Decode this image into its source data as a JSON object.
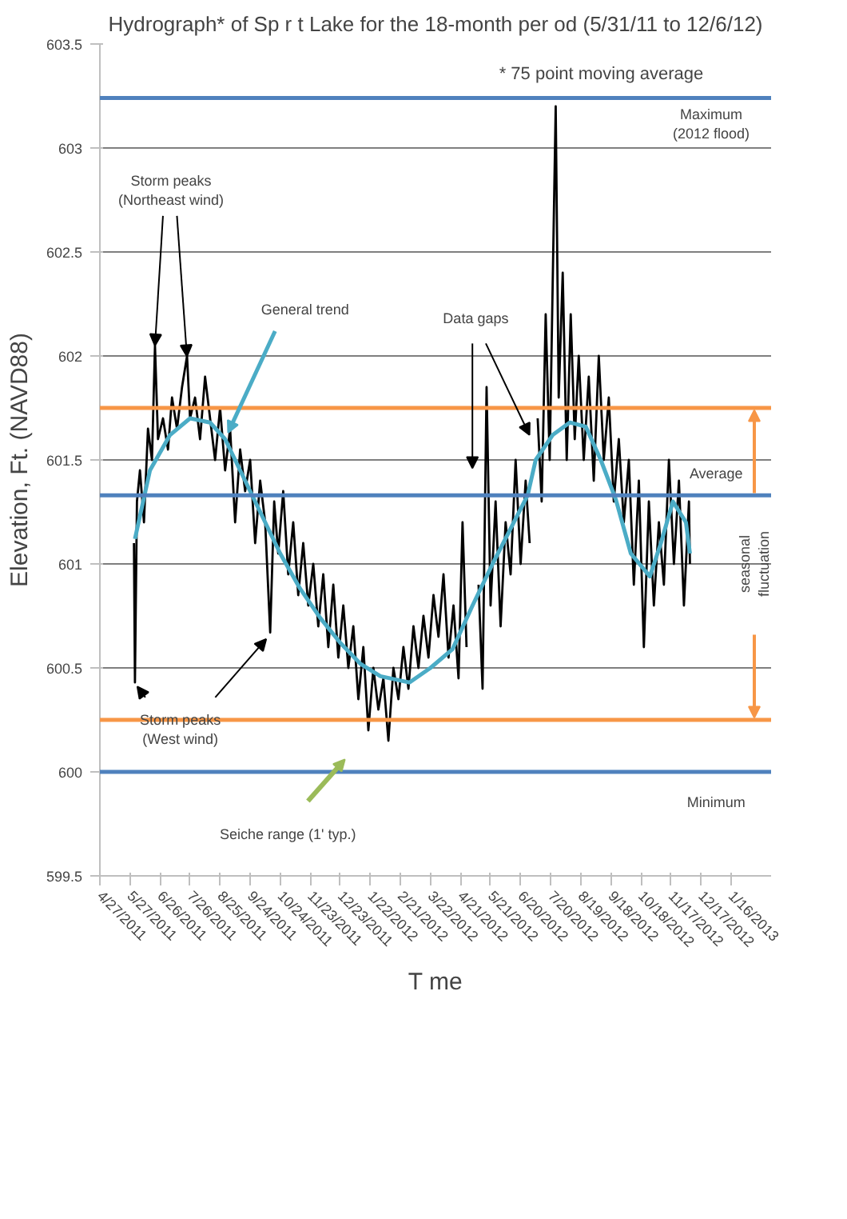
{
  "chart_data": {
    "type": "line",
    "title": "Hydrograph* of Sp r t Lake for the 18-month per od (5/31/11 to 12/6/12)",
    "subtitle": "* 75 point moving average",
    "xlabel": "T me",
    "ylabel": "Elevation, Ft. (NAVD88)",
    "xlim": [
      "2011-04-27",
      "2013-02-25"
    ],
    "xticks": [
      {
        "value": "2011-04-27",
        "label": "4/27/2011"
      },
      {
        "value": "2011-05-27",
        "label": "5/27/2011"
      },
      {
        "value": "2011-06-26",
        "label": "6/26/2011"
      },
      {
        "value": "2011-07-26",
        "label": "7/26/2011"
      },
      {
        "value": "2011-08-25",
        "label": "8/25/2011"
      },
      {
        "value": "2011-09-24",
        "label": "9/24/2011"
      },
      {
        "value": "2011-10-24",
        "label": "10/24/2011"
      },
      {
        "value": "2011-11-23",
        "label": "11/23/2011"
      },
      {
        "value": "2011-12-23",
        "label": "12/23/2011"
      },
      {
        "value": "2012-01-22",
        "label": "1/22/2012"
      },
      {
        "value": "2012-02-21",
        "label": "2/21/2012"
      },
      {
        "value": "2012-03-22",
        "label": "3/22/2012"
      },
      {
        "value": "2012-04-21",
        "label": "4/21/2012"
      },
      {
        "value": "2012-05-21",
        "label": "5/21/2012"
      },
      {
        "value": "2012-06-20",
        "label": "6/20/2012"
      },
      {
        "value": "2012-07-20",
        "label": "7/20/2012"
      },
      {
        "value": "2012-08-19",
        "label": "8/19/2012"
      },
      {
        "value": "2012-09-18",
        "label": "9/18/2012"
      },
      {
        "value": "2012-10-18",
        "label": "10/18/2012"
      },
      {
        "value": "2012-11-17",
        "label": "11/17/2012"
      },
      {
        "value": "2012-12-17",
        "label": "12/17/2012"
      },
      {
        "value": "2013-01-16",
        "label": "1/16/2013"
      }
    ],
    "ylim": [
      599.5,
      603.5
    ],
    "yticks": [
      599.5,
      600,
      600.5,
      601,
      601.5,
      602,
      602.5,
      603,
      603.5
    ],
    "grid": "y",
    "series": [
      {
        "color": "#000000",
        "x": [
          "2011-05-31",
          "2011-06-01",
          "2011-06-03",
          "2011-06-06",
          "2011-06-10",
          "2011-06-14",
          "2011-06-18",
          "2011-06-21",
          "2011-06-24",
          "2011-06-29",
          "2011-07-04",
          "2011-07-08",
          "2011-07-13",
          "2011-07-18",
          "2011-07-23",
          "2011-07-26",
          "2011-07-31",
          "2011-08-05",
          "2011-08-10",
          "2011-08-15",
          "2011-08-20",
          "2011-08-25",
          "2011-08-30",
          "2011-09-04",
          "2011-09-09",
          "2011-09-14",
          "2011-09-19",
          "2011-09-24",
          "2011-09-29",
          "2011-10-04",
          "2011-10-09",
          "2011-10-14",
          "2011-10-18",
          "2011-10-22",
          "2011-10-27",
          "2011-11-01",
          "2011-11-06",
          "2011-11-11",
          "2011-11-16",
          "2011-11-21",
          "2011-11-26",
          "2011-12-01",
          "2011-12-06",
          "2011-12-11",
          "2011-12-16",
          "2011-12-21",
          "2011-12-26",
          "2011-12-31",
          "2012-01-05",
          "2012-01-10",
          "2012-01-15",
          "2012-01-20",
          "2012-01-25",
          "2012-01-30",
          "2012-02-04",
          "2012-02-09",
          "2012-02-14",
          "2012-02-19",
          "2012-02-24",
          "2012-02-29",
          "2012-03-05",
          "2012-03-10",
          "2012-03-15",
          "2012-03-20",
          "2012-03-25",
          "2012-03-30",
          "2012-04-04",
          "2012-04-09",
          "2012-04-14",
          "2012-04-19",
          "2012-04-23",
          "2012-04-27",
          "2012-05-01",
          "2012-05-09",
          "2012-05-13",
          "2012-05-17",
          "2012-05-21",
          "2012-05-26",
          "2012-05-31",
          "2012-06-05",
          "2012-06-10",
          "2012-06-15",
          "2012-06-20",
          "2012-06-25",
          "2012-06-29",
          "2012-07-02",
          "2012-07-07",
          "2012-07-11",
          "2012-07-15",
          "2012-07-19",
          "2012-07-25",
          "2012-07-28",
          "2012-08-01",
          "2012-08-05",
          "2012-08-09",
          "2012-08-13",
          "2012-08-17",
          "2012-08-22",
          "2012-08-27",
          "2012-09-01",
          "2012-09-06",
          "2012-09-11",
          "2012-09-16",
          "2012-09-21",
          "2012-09-26",
          "2012-10-01",
          "2012-10-06",
          "2012-10-11",
          "2012-10-16",
          "2012-10-21",
          "2012-10-26",
          "2012-10-31",
          "2012-11-05",
          "2012-11-10",
          "2012-11-15",
          "2012-11-20",
          "2012-11-25",
          "2012-11-30",
          "2012-12-05",
          "2012-12-06"
        ],
        "values": [
          601.1,
          600.43,
          601.3,
          601.45,
          601.2,
          601.65,
          601.5,
          602.05,
          601.6,
          601.7,
          601.55,
          601.8,
          601.65,
          601.85,
          602.0,
          601.7,
          601.8,
          601.6,
          601.9,
          601.7,
          601.5,
          601.75,
          601.45,
          601.65,
          601.2,
          601.55,
          601.35,
          601.5,
          601.1,
          601.4,
          601.2,
          600.67,
          601.3,
          601.05,
          601.35,
          600.95,
          601.2,
          600.85,
          601.1,
          600.8,
          601.0,
          600.7,
          600.95,
          600.6,
          600.9,
          600.55,
          600.8,
          600.5,
          600.7,
          600.35,
          600.6,
          600.2,
          600.5,
          600.3,
          600.45,
          600.15,
          600.5,
          600.35,
          600.6,
          600.4,
          600.7,
          600.5,
          600.75,
          600.55,
          600.85,
          600.65,
          600.95,
          600.55,
          600.8,
          600.45,
          601.2,
          600.6,
          null,
          600.9,
          600.4,
          601.85,
          600.8,
          601.3,
          600.7,
          601.2,
          600.95,
          601.5,
          601.0,
          601.4,
          601.1,
          null,
          601.7,
          601.3,
          602.2,
          601.5,
          603.2,
          601.8,
          602.4,
          601.5,
          602.2,
          601.6,
          602.0,
          601.5,
          601.9,
          601.4,
          602.0,
          601.5,
          601.8,
          601.3,
          601.6,
          601.2,
          601.5,
          600.9,
          601.4,
          600.6,
          601.3,
          600.8,
          601.2,
          600.9,
          601.5,
          601.0,
          601.4,
          600.8,
          601.3,
          601.0
        ]
      },
      {
        "color": "#4bacc6",
        "x": [
          "2011-06-01",
          "2011-06-16",
          "2011-07-06",
          "2011-07-26",
          "2011-08-15",
          "2011-08-30",
          "2011-09-14",
          "2011-10-04",
          "2011-10-24",
          "2011-11-13",
          "2011-12-03",
          "2011-12-23",
          "2012-01-12",
          "2012-02-01",
          "2012-03-01",
          "2012-03-22",
          "2012-04-13",
          "2012-05-03",
          "2012-05-23",
          "2012-06-10",
          "2012-06-27",
          "2012-07-05",
          "2012-07-22",
          "2012-08-08",
          "2012-08-24",
          "2012-09-08",
          "2012-09-23",
          "2012-10-08",
          "2012-10-27",
          "2012-11-07",
          "2012-11-19",
          "2012-12-02",
          "2012-12-06"
        ],
        "values": [
          601.12,
          601.45,
          601.62,
          601.7,
          601.68,
          601.6,
          601.45,
          601.25,
          601.05,
          600.88,
          600.74,
          600.62,
          600.52,
          600.46,
          600.43,
          600.5,
          600.59,
          600.8,
          601.0,
          601.17,
          601.33,
          601.5,
          601.62,
          601.68,
          601.66,
          601.5,
          601.31,
          601.05,
          600.94,
          601.1,
          601.3,
          601.2,
          601.05
        ]
      }
    ],
    "ref_lines": [
      {
        "axis": "y",
        "value": 603.24,
        "label": "Maximum\n(2012 flood)",
        "color": "#4f81bd"
      },
      {
        "axis": "y",
        "value": 601.33,
        "label": "Average",
        "color": "#4f81bd"
      },
      {
        "axis": "y",
        "value": 600.0,
        "label": "Minimum",
        "color": "#4f81bd"
      },
      {
        "axis": "y",
        "value": 601.75,
        "label": null,
        "color": "#f79646"
      },
      {
        "axis": "y",
        "value": 600.25,
        "label": null,
        "color": "#f79646"
      }
    ],
    "annotations": [
      {
        "text": "Storm peaks\n(Northeast wind)",
        "x": "2011-06-21",
        "y": 602.05
      },
      {
        "text": "General trend",
        "x": "2011-08-30",
        "y": 601.6
      },
      "Data gaps",
      {
        "text": "Storm peaks\n(West wind)",
        "x": "2011-10-14",
        "y": 600.67
      },
      "Seiche range (1' typ.)",
      "seasonal\nfluctuation"
    ]
  }
}
